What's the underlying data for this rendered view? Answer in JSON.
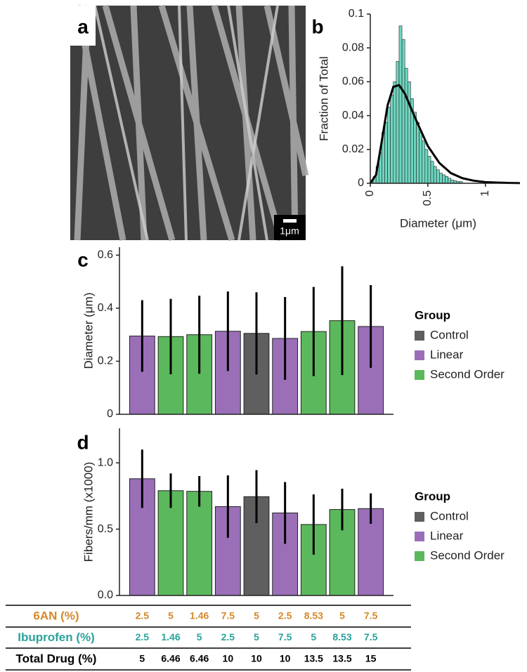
{
  "image": {
    "label": "a",
    "scale_bar": "1μm"
  },
  "chart_data": [
    {
      "type": "histogram",
      "label": "b",
      "xlabel": "Diameter (μm)",
      "ylabel": "Fraction of Total",
      "bins": [
        0,
        0.025,
        0.05,
        0.075,
        0.1,
        0.125,
        0.15,
        0.175,
        0.2,
        0.225,
        0.25,
        0.275,
        0.3,
        0.325,
        0.35,
        0.375,
        0.4,
        0.425,
        0.45,
        0.475,
        0.5,
        0.525,
        0.55,
        0.575,
        0.6,
        0.625,
        0.65,
        0.675,
        0.7,
        0.725,
        0.75,
        0.775,
        0.8
      ],
      "values": [
        0.001,
        0.004,
        0.01,
        0.018,
        0.03,
        0.036,
        0.045,
        0.052,
        0.06,
        0.072,
        0.093,
        0.085,
        0.068,
        0.06,
        0.05,
        0.042,
        0.036,
        0.03,
        0.025,
        0.02,
        0.016,
        0.013,
        0.01,
        0.008,
        0.006,
        0.005,
        0.004,
        0.003,
        0.002,
        0.0015,
        0.001,
        0.001
      ],
      "color": "#6fd6c0",
      "curve": {
        "x": [
          0,
          0.05,
          0.1,
          0.15,
          0.2,
          0.25,
          0.3,
          0.35,
          0.4,
          0.5,
          0.6,
          0.7,
          0.8,
          0.9,
          1.0,
          1.1,
          1.2,
          1.3
        ],
        "y": [
          0,
          0.005,
          0.025,
          0.046,
          0.057,
          0.058,
          0.053,
          0.045,
          0.037,
          0.022,
          0.012,
          0.006,
          0.003,
          0.0015,
          0.0007,
          0.0004,
          0.0002,
          0.0001
        ],
        "color": "#000000"
      },
      "xlim": [
        0,
        1.3
      ],
      "xticks": [
        0,
        0.5,
        1
      ],
      "ylim": [
        0,
        0.1
      ],
      "yticks": [
        0,
        0.02,
        0.04,
        0.06,
        0.08,
        0.1
      ]
    },
    {
      "type": "bar",
      "label": "c",
      "ylabel": "Diameter (μm)",
      "values": [
        0.295,
        0.293,
        0.3,
        0.313,
        0.305,
        0.286,
        0.312,
        0.353,
        0.331
      ],
      "errors": [
        0.135,
        0.142,
        0.147,
        0.15,
        0.155,
        0.156,
        0.168,
        0.205,
        0.156
      ],
      "colors": [
        "#9b6fb8",
        "#5cb85c",
        "#5cb85c",
        "#9b6fb8",
        "#5f5f5f",
        "#9b6fb8",
        "#5cb85c",
        "#5cb85c",
        "#9b6fb8"
      ],
      "ylim": [
        0,
        0.63
      ],
      "yticks": [
        0,
        0.2,
        0.4,
        0.6
      ],
      "legend": {
        "title": "Group",
        "entries": [
          {
            "name": "Control",
            "color": "#5f5f5f"
          },
          {
            "name": "Linear",
            "color": "#9b6fb8"
          },
          {
            "name": "Second Order",
            "color": "#5cb85c"
          }
        ]
      }
    },
    {
      "type": "bar",
      "label": "d",
      "ylabel": "Fibers/mm (x1000)",
      "values": [
        0.88,
        0.79,
        0.785,
        0.67,
        0.745,
        0.622,
        0.535,
        0.648,
        0.655
      ],
      "errors": [
        0.22,
        0.13,
        0.115,
        0.235,
        0.2,
        0.233,
        0.227,
        0.157,
        0.115
      ],
      "colors": [
        "#9b6fb8",
        "#5cb85c",
        "#5cb85c",
        "#9b6fb8",
        "#5f5f5f",
        "#9b6fb8",
        "#5cb85c",
        "#5cb85c",
        "#9b6fb8"
      ],
      "ylim": [
        0,
        1.26
      ],
      "yticks": [
        {
          "value": 0,
          "label": "0.0"
        },
        {
          "value": 0.5,
          "label": "0.5"
        },
        {
          "value": 1,
          "label": "1.0"
        }
      ],
      "legend": {
        "title": "Group",
        "entries": [
          {
            "name": "Control",
            "color": "#5f5f5f"
          },
          {
            "name": "Linear",
            "color": "#9b6fb8"
          },
          {
            "name": "Second Order",
            "color": "#5cb85c"
          }
        ]
      }
    }
  ],
  "table": {
    "rows": [
      {
        "label": "6AN (%)",
        "color": "#d4892a",
        "values": [
          2.5,
          5,
          1.46,
          7.5,
          5,
          2.5,
          8.53,
          5,
          7.5
        ]
      },
      {
        "label": "Ibuprofen (%)",
        "color": "#2aa39a",
        "values": [
          2.5,
          1.46,
          5,
          2.5,
          5,
          7.5,
          5,
          8.53,
          7.5
        ]
      },
      {
        "label": "Total Drug (%)",
        "color": "#000000",
        "values": [
          5,
          6.46,
          6.46,
          10,
          10,
          10,
          13.5,
          13.5,
          15
        ]
      }
    ]
  }
}
